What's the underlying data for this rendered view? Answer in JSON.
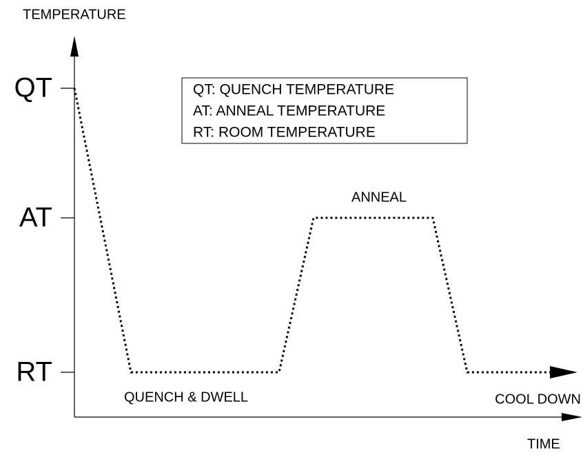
{
  "axes": {
    "y_label": "TEMPERATURE",
    "x_label": "TIME"
  },
  "levels": [
    "QT",
    "AT",
    "RT"
  ],
  "legend": [
    "QT:  QUENCH TEMPERATURE",
    "AT:  ANNEAL TEMPERATURE",
    "RT:  ROOM TEMPERATURE"
  ],
  "phases": [
    "QUENCH & DWELL",
    "ANNEAL",
    "COOL DOWN"
  ]
}
